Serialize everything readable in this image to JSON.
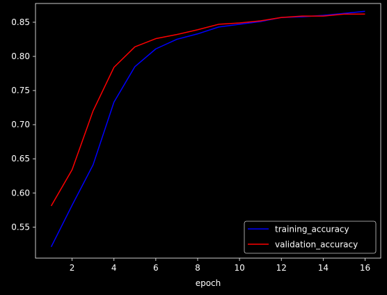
{
  "chart_data": {
    "type": "line",
    "title": "",
    "xlabel": "epoch",
    "ylabel": "",
    "x": [
      1,
      2,
      3,
      4,
      5,
      6,
      7,
      8,
      9,
      10,
      11,
      12,
      13,
      14,
      15,
      16
    ],
    "xlim": [
      0.25,
      16.75
    ],
    "ylim": [
      0.5045,
      0.8775
    ],
    "xticks": [
      2,
      4,
      6,
      8,
      10,
      12,
      14,
      16
    ],
    "yticks": [
      0.55,
      0.6,
      0.65,
      0.7,
      0.75,
      0.8,
      0.85
    ],
    "ytick_labels": [
      "0.55",
      "0.60",
      "0.65",
      "0.70",
      "0.75",
      "0.80",
      "0.85"
    ],
    "grid": false,
    "legend_position": "bottom-right",
    "series": [
      {
        "name": "training_accuracy",
        "color": "#0000ff",
        "values": [
          0.521,
          0.582,
          0.641,
          0.733,
          0.785,
          0.811,
          0.825,
          0.833,
          0.843,
          0.847,
          0.851,
          0.857,
          0.858,
          0.86,
          0.863,
          0.866
        ]
      },
      {
        "name": "validation_accuracy",
        "color": "#ff0000",
        "values": [
          0.581,
          0.634,
          0.72,
          0.784,
          0.814,
          0.826,
          0.832,
          0.839,
          0.847,
          0.849,
          0.852,
          0.857,
          0.859,
          0.859,
          0.862,
          0.862
        ]
      }
    ]
  }
}
